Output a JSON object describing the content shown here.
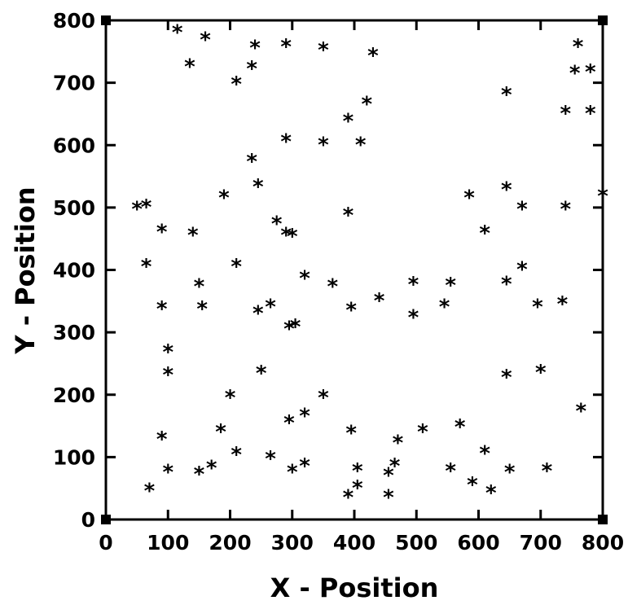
{
  "chart_data": {
    "type": "scatter",
    "title": "",
    "xlabel": "X - Position",
    "ylabel": "Y - Position",
    "xlim": [
      0,
      800
    ],
    "ylim": [
      0,
      800
    ],
    "xticks": [
      "0",
      "100",
      "200",
      "300",
      "400",
      "500",
      "600",
      "700",
      "800"
    ],
    "yticks": [
      "0",
      "100",
      "200",
      "300",
      "400",
      "500",
      "600",
      "700",
      "800"
    ],
    "grid": false,
    "marker_glyph": "*",
    "marker_color": "#000000",
    "points": [
      [
        115,
        785
      ],
      [
        160,
        773
      ],
      [
        135,
        730
      ],
      [
        240,
        760
      ],
      [
        290,
        762
      ],
      [
        350,
        757
      ],
      [
        430,
        748
      ],
      [
        235,
        727
      ],
      [
        210,
        702
      ],
      [
        420,
        670
      ],
      [
        390,
        643
      ],
      [
        410,
        605
      ],
      [
        350,
        605
      ],
      [
        290,
        610
      ],
      [
        235,
        578
      ],
      [
        245,
        538
      ],
      [
        190,
        520
      ],
      [
        50,
        502
      ],
      [
        65,
        505
      ],
      [
        390,
        492
      ],
      [
        275,
        478
      ],
      [
        290,
        460
      ],
      [
        300,
        458
      ],
      [
        140,
        460
      ],
      [
        90,
        465
      ],
      [
        65,
        410
      ],
      [
        210,
        410
      ],
      [
        320,
        391
      ],
      [
        150,
        378
      ],
      [
        365,
        378
      ],
      [
        495,
        381
      ],
      [
        555,
        380
      ],
      [
        440,
        355
      ],
      [
        90,
        342
      ],
      [
        155,
        342
      ],
      [
        265,
        345
      ],
      [
        245,
        335
      ],
      [
        395,
        340
      ],
      [
        495,
        328
      ],
      [
        545,
        345
      ],
      [
        295,
        310
      ],
      [
        305,
        313
      ],
      [
        100,
        273
      ],
      [
        100,
        236
      ],
      [
        250,
        239
      ],
      [
        200,
        200
      ],
      [
        350,
        200
      ],
      [
        295,
        159
      ],
      [
        320,
        170
      ],
      [
        185,
        145
      ],
      [
        90,
        133
      ],
      [
        395,
        143
      ],
      [
        510,
        145
      ],
      [
        570,
        153
      ],
      [
        470,
        127
      ],
      [
        210,
        108
      ],
      [
        100,
        80
      ],
      [
        150,
        77
      ],
      [
        170,
        87
      ],
      [
        265,
        102
      ],
      [
        300,
        80
      ],
      [
        320,
        90
      ],
      [
        405,
        82
      ],
      [
        465,
        90
      ],
      [
        455,
        75
      ],
      [
        70,
        50
      ],
      [
        405,
        55
      ],
      [
        390,
        40
      ],
      [
        455,
        40
      ],
      [
        555,
        82
      ],
      [
        585,
        520
      ],
      [
        610,
        463
      ],
      [
        645,
        685
      ],
      [
        645,
        533
      ],
      [
        670,
        502
      ],
      [
        670,
        405
      ],
      [
        645,
        382
      ],
      [
        695,
        345
      ],
      [
        735,
        350
      ],
      [
        700,
        240
      ],
      [
        645,
        232
      ],
      [
        610,
        110
      ],
      [
        590,
        60
      ],
      [
        620,
        47
      ],
      [
        650,
        80
      ],
      [
        710,
        82
      ],
      [
        740,
        655
      ],
      [
        740,
        502
      ],
      [
        760,
        762
      ],
      [
        755,
        720
      ],
      [
        780,
        722
      ],
      [
        780,
        655
      ],
      [
        800,
        523
      ],
      [
        765,
        178
      ]
    ]
  }
}
